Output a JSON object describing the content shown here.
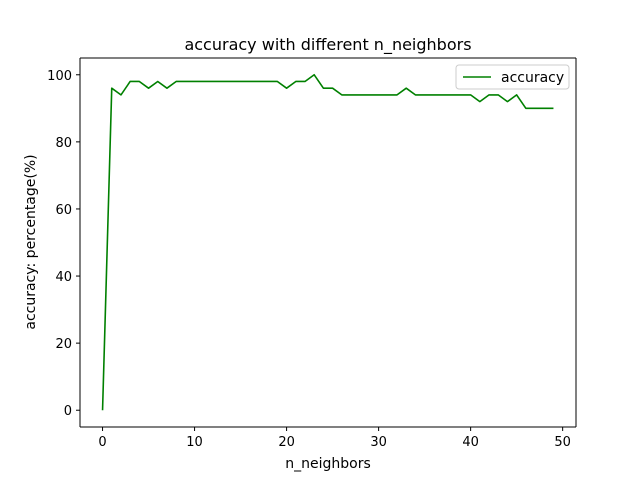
{
  "chart_data": {
    "type": "line",
    "title": "accuracy with different n_neighbors",
    "xlabel": "n_neighbors",
    "ylabel": "accuracy: percentage(%)",
    "xlim": [
      -2.45,
      51.45
    ],
    "ylim": [
      -5,
      105
    ],
    "xticks": [
      0,
      10,
      20,
      30,
      40,
      50
    ],
    "yticks": [
      0,
      20,
      40,
      60,
      80,
      100
    ],
    "legend_position": "top-right",
    "grid": false,
    "series": [
      {
        "name": "accuracy",
        "color": "#008000",
        "x": [
          0,
          1,
          2,
          3,
          4,
          5,
          6,
          7,
          8,
          9,
          10,
          11,
          12,
          13,
          14,
          15,
          16,
          17,
          18,
          19,
          20,
          21,
          22,
          23,
          24,
          25,
          26,
          27,
          28,
          29,
          30,
          31,
          32,
          33,
          34,
          35,
          36,
          37,
          38,
          39,
          40,
          41,
          42,
          43,
          44,
          45,
          46,
          47,
          48,
          49
        ],
        "values": [
          0,
          96,
          94,
          98,
          98,
          96,
          98,
          96,
          98,
          98,
          98,
          98,
          98,
          98,
          98,
          98,
          98,
          98,
          98,
          98,
          96,
          98,
          98,
          100,
          96,
          96,
          94,
          94,
          94,
          94,
          94,
          94,
          94,
          96,
          94,
          94,
          94,
          94,
          94,
          94,
          94,
          92,
          94,
          94,
          92,
          94,
          90,
          90,
          90,
          90
        ]
      }
    ]
  }
}
